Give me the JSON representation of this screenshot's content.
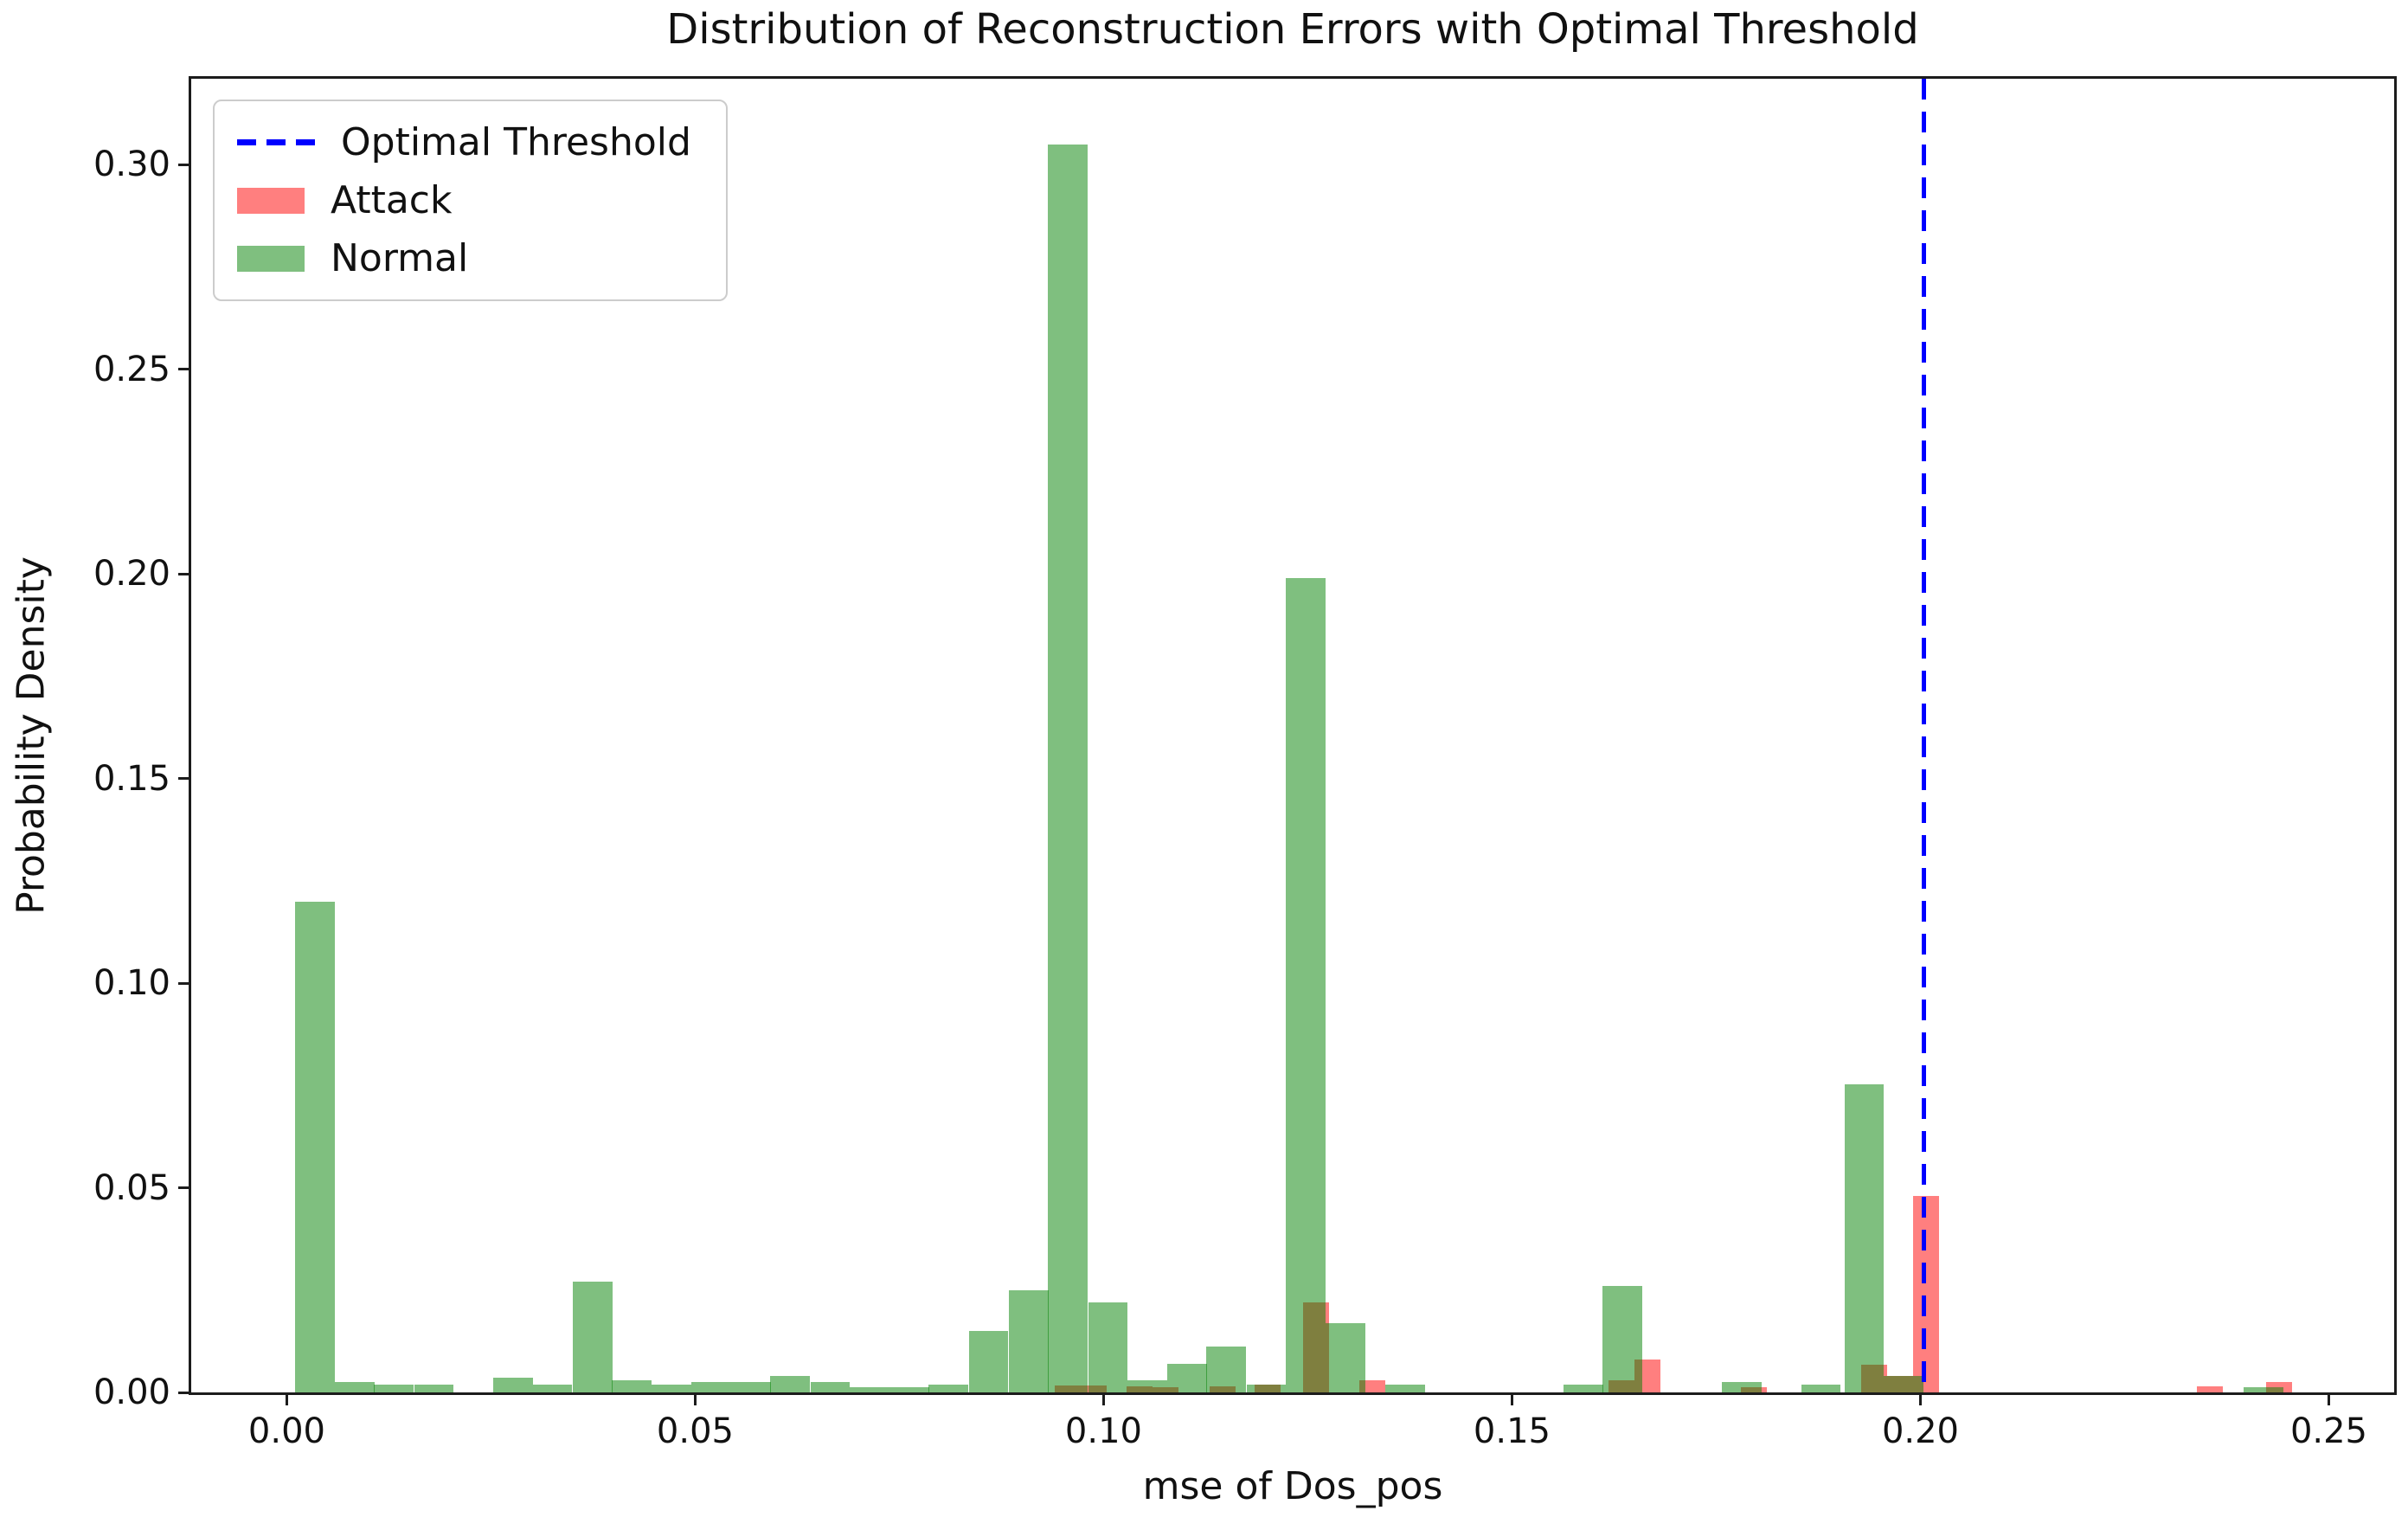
{
  "title": "Distribution of Reconstruction Errors with Optimal Threshold",
  "axes": {
    "xlabel": "mse of Dos_pos",
    "ylabel": "Probability Density"
  },
  "legend": {
    "threshold_label": "Optimal Threshold",
    "attack_label": "Attack",
    "normal_label": "Normal"
  },
  "colors": {
    "threshold_line": "#0000ff",
    "attack_fill": "rgba(255,0,0,0.5)",
    "normal_fill": "rgba(0,128,0,0.5)",
    "attack_flat": "#ff7f7f",
    "normal_flat": "#7fbf7f",
    "overlap_flat": "#7f7f3f",
    "spine": "#1c1c1c"
  },
  "chart_data": {
    "type": "bar",
    "subtype": "histogram-overlaid",
    "title": "Distribution of Reconstruction Errors with Optimal Threshold",
    "xlabel": "mse of Dos_pos",
    "ylabel": "Probability Density",
    "xlim": [
      -0.0117,
      0.258
    ],
    "ylim": [
      0,
      0.321
    ],
    "grid": false,
    "legend_position": "upper-left",
    "threshold": {
      "label": "Optimal Threshold",
      "x": 0.2004
    },
    "x_ticks": [
      {
        "value": 0.0,
        "label": "0.00"
      },
      {
        "value": 0.05,
        "label": "0.05"
      },
      {
        "value": 0.1,
        "label": "0.10"
      },
      {
        "value": 0.15,
        "label": "0.15"
      },
      {
        "value": 0.2,
        "label": "0.20"
      },
      {
        "value": 0.25,
        "label": "0.25"
      }
    ],
    "y_ticks": [
      {
        "value": 0.0,
        "label": "0.00"
      },
      {
        "value": 0.05,
        "label": "0.05"
      },
      {
        "value": 0.1,
        "label": "0.10"
      },
      {
        "value": 0.15,
        "label": "0.15"
      },
      {
        "value": 0.2,
        "label": "0.20"
      },
      {
        "value": 0.25,
        "label": "0.25"
      },
      {
        "value": 0.3,
        "label": "0.30"
      }
    ],
    "series": [
      {
        "name": "Attack",
        "bin_width": 0.0032,
        "bars": [
          [
            0.094,
            0.0018
          ],
          [
            0.0972,
            0.0018
          ],
          [
            0.1028,
            0.0015
          ],
          [
            0.106,
            0.0012
          ],
          [
            0.113,
            0.0015
          ],
          [
            0.1185,
            0.002
          ],
          [
            0.1244,
            0.022
          ],
          [
            0.1313,
            0.003
          ],
          [
            0.1618,
            0.003
          ],
          [
            0.165,
            0.008
          ],
          [
            0.178,
            0.0012
          ],
          [
            0.1927,
            0.0067
          ],
          [
            0.1959,
            0.004
          ],
          [
            0.1991,
            0.048
          ],
          [
            0.2338,
            0.0015
          ],
          [
            0.2423,
            0.0025
          ]
        ]
      },
      {
        "name": "Normal",
        "bin_width": 0.00485,
        "bars": [
          [
            0.001,
            0.12
          ],
          [
            0.0059,
            0.0025
          ],
          [
            0.0107,
            0.002
          ],
          [
            0.0156,
            0.002
          ],
          [
            0.0253,
            0.0035
          ],
          [
            0.0301,
            0.002
          ],
          [
            0.035,
            0.027
          ],
          [
            0.0398,
            0.003
          ],
          [
            0.0447,
            0.002
          ],
          [
            0.0495,
            0.0025
          ],
          [
            0.0544,
            0.0025
          ],
          [
            0.0592,
            0.004
          ],
          [
            0.0641,
            0.0025
          ],
          [
            0.0689,
            0.0012
          ],
          [
            0.0738,
            0.0012
          ],
          [
            0.0786,
            0.002
          ],
          [
            0.0835,
            0.015
          ],
          [
            0.0884,
            0.025
          ],
          [
            0.0932,
            0.305
          ],
          [
            0.0981,
            0.022
          ],
          [
            0.1029,
            0.003
          ],
          [
            0.1078,
            0.007
          ],
          [
            0.1126,
            0.0113
          ],
          [
            0.1175,
            0.002
          ],
          [
            0.1223,
            0.199
          ],
          [
            0.1272,
            0.017
          ],
          [
            0.1345,
            0.002
          ],
          [
            0.1563,
            0.002
          ],
          [
            0.1611,
            0.026
          ],
          [
            0.1757,
            0.0025
          ],
          [
            0.1854,
            0.002
          ],
          [
            0.1907,
            0.0752
          ],
          [
            0.1955,
            0.004
          ],
          [
            0.2396,
            0.0012
          ]
        ]
      }
    ]
  }
}
